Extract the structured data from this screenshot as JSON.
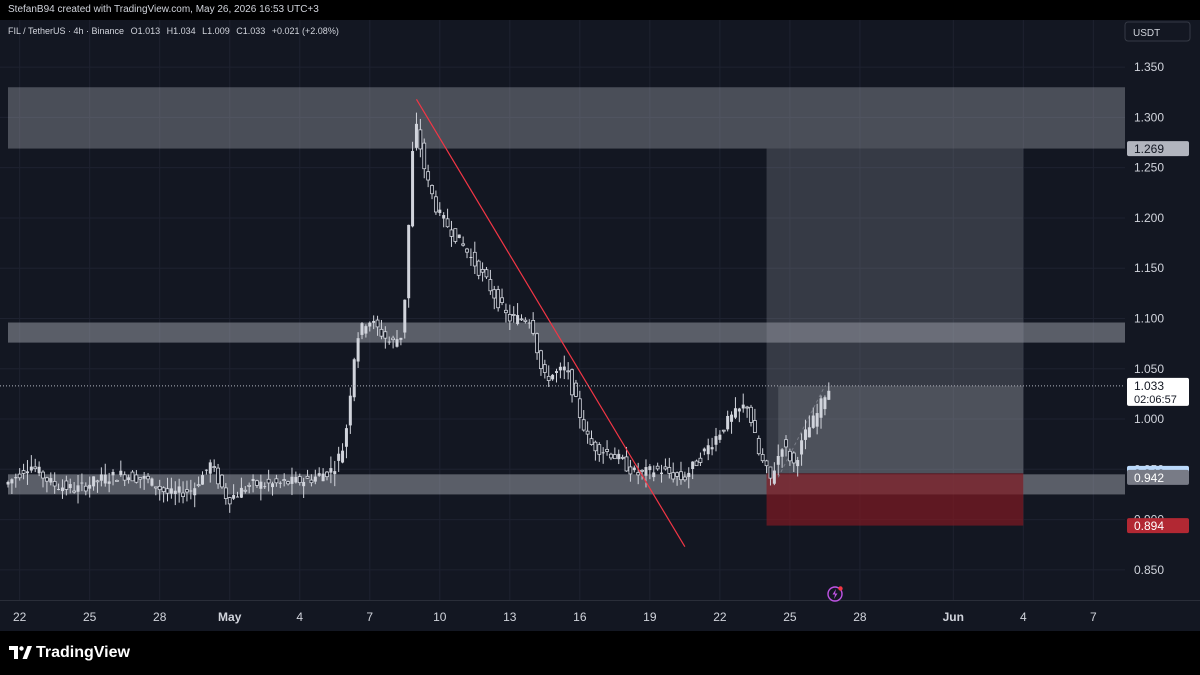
{
  "header": {
    "caption": "StefanB94 created with TradingView.com, May 26, 2026 16:53 UTC+3"
  },
  "legend": {
    "symbol": "FIL / TetherUS · 4h · Binance",
    "open": "O1.013",
    "high": "H1.034",
    "low": "L1.009",
    "close": "C1.033",
    "change": "+0.021 (+2.08%)"
  },
  "footer": {
    "brand": "TradingView"
  },
  "colors": {
    "background": "#131722",
    "grid": "#1e2230",
    "candle": "#d1d4dc",
    "trendline": "#f23645",
    "zone": "#b2b5be",
    "target_zone": "#9598a1",
    "stop_zone": "#801922",
    "stop_label": "#b22833",
    "entry_label": "#bbd9fb"
  },
  "chart_data": {
    "type": "candlestick",
    "symbol": "FIL / TetherUS",
    "interval": "4h",
    "exchange": "Binance",
    "currency": "USDT",
    "y_axis_label": "USDT",
    "ylim": [
      0.82,
      1.375
    ],
    "y_ticks": [
      0.85,
      0.9,
      0.95,
      1.0,
      1.05,
      1.1,
      1.15,
      1.2,
      1.25,
      1.3,
      1.35
    ],
    "y_tick_labels": [
      "0.850",
      "0.900",
      "0.950",
      "1.000",
      "1.050",
      "1.100",
      "1.150",
      "1.200",
      "1.250",
      "1.300",
      "1.350"
    ],
    "x_range": [
      "2026-04-21T12:00",
      "2026-06-07T12:00"
    ],
    "x_ticks": [
      {
        "date": "2026-04-22",
        "label": "22",
        "bold": false
      },
      {
        "date": "2026-04-25",
        "label": "25",
        "bold": false
      },
      {
        "date": "2026-04-28",
        "label": "28",
        "bold": false
      },
      {
        "date": "2026-05-01",
        "label": "May",
        "bold": true
      },
      {
        "date": "2026-05-04",
        "label": "4",
        "bold": false
      },
      {
        "date": "2026-05-07",
        "label": "7",
        "bold": false
      },
      {
        "date": "2026-05-10",
        "label": "10",
        "bold": false
      },
      {
        "date": "2026-05-13",
        "label": "13",
        "bold": false
      },
      {
        "date": "2026-05-16",
        "label": "16",
        "bold": false
      },
      {
        "date": "2026-05-19",
        "label": "19",
        "bold": false
      },
      {
        "date": "2026-05-22",
        "label": "22",
        "bold": false
      },
      {
        "date": "2026-05-25",
        "label": "25",
        "bold": false
      },
      {
        "date": "2026-05-28",
        "label": "28",
        "bold": false
      },
      {
        "date": "2026-06-01",
        "label": "Jun",
        "bold": true
      },
      {
        "date": "2026-06-04",
        "label": "4",
        "bold": false
      },
      {
        "date": "2026-06-07",
        "label": "7",
        "bold": false
      }
    ],
    "zones": [
      {
        "name": "resistance-zone",
        "from": 1.269,
        "to": 1.33
      },
      {
        "name": "mid-zone",
        "from": 1.076,
        "to": 1.096
      },
      {
        "name": "support-zone",
        "from": 0.925,
        "to": 0.945
      }
    ],
    "trendline": {
      "start": {
        "date": "2026-05-09T00:00",
        "price": 1.318
      },
      "end": {
        "date": "2026-05-20T12:00",
        "price": 0.873
      }
    },
    "position": {
      "type": "long",
      "entry": 0.946,
      "target": 1.269,
      "stop": 0.894,
      "start": "2026-05-24T00:00",
      "end": "2026-06-04T00:00",
      "fill_start": "2026-05-24T12:00",
      "fill_end": "2026-05-26T12:00"
    },
    "price_labels": [
      {
        "value": 1.269,
        "text": "1.269",
        "kind": "target"
      },
      {
        "value": 1.033,
        "text": "1.033",
        "kind": "current",
        "extra": "02:06:57"
      },
      {
        "value": 0.946,
        "text": "0.946",
        "kind": "entry"
      },
      {
        "value": 0.942,
        "text": "0.942",
        "kind": "zone"
      },
      {
        "value": 0.894,
        "text": "0.894",
        "kind": "stop"
      }
    ],
    "last_price": 1.033,
    "countdown": "02:06:57",
    "anchors": [
      {
        "date": "2026-04-21T12:00",
        "price": 0.935
      },
      {
        "date": "2026-04-22T12:00",
        "price": 0.955
      },
      {
        "date": "2026-04-23T12:00",
        "price": 0.935
      },
      {
        "date": "2026-04-24T12:00",
        "price": 0.93
      },
      {
        "date": "2026-04-25T12:00",
        "price": 0.94
      },
      {
        "date": "2026-04-26T12:00",
        "price": 0.945
      },
      {
        "date": "2026-04-27T12:00",
        "price": 0.94
      },
      {
        "date": "2026-04-28T12:00",
        "price": 0.925
      },
      {
        "date": "2026-04-29T12:00",
        "price": 0.93
      },
      {
        "date": "2026-04-30T06:00",
        "price": 0.955
      },
      {
        "date": "2026-05-01T00:00",
        "price": 0.92
      },
      {
        "date": "2026-05-02T00:00",
        "price": 0.935
      },
      {
        "date": "2026-05-03T00:00",
        "price": 0.935
      },
      {
        "date": "2026-05-04T12:00",
        "price": 0.94
      },
      {
        "date": "2026-05-05T12:00",
        "price": 0.95
      },
      {
        "date": "2026-05-06T00:00",
        "price": 0.975
      },
      {
        "date": "2026-05-06T12:00",
        "price": 1.08
      },
      {
        "date": "2026-05-07T00:00",
        "price": 1.1
      },
      {
        "date": "2026-05-08T00:00",
        "price": 1.075
      },
      {
        "date": "2026-05-08T12:00",
        "price": 1.085
      },
      {
        "date": "2026-05-09T00:00",
        "price": 1.3
      },
      {
        "date": "2026-05-09T12:00",
        "price": 1.24
      },
      {
        "date": "2026-05-10T00:00",
        "price": 1.205
      },
      {
        "date": "2026-05-11T00:00",
        "price": 1.175
      },
      {
        "date": "2026-05-12T00:00",
        "price": 1.14
      },
      {
        "date": "2026-05-13T00:00",
        "price": 1.1
      },
      {
        "date": "2026-05-14T00:00",
        "price": 1.1
      },
      {
        "date": "2026-05-14T12:00",
        "price": 1.04
      },
      {
        "date": "2026-05-15T12:00",
        "price": 1.05
      },
      {
        "date": "2026-05-16T00:00",
        "price": 1.01
      },
      {
        "date": "2026-05-16T12:00",
        "price": 0.975
      },
      {
        "date": "2026-05-17T12:00",
        "price": 0.965
      },
      {
        "date": "2026-05-18T12:00",
        "price": 0.945
      },
      {
        "date": "2026-05-19T12:00",
        "price": 0.95
      },
      {
        "date": "2026-05-20T12:00",
        "price": 0.94
      },
      {
        "date": "2026-05-21T12:00",
        "price": 0.97
      },
      {
        "date": "2026-05-22T12:00",
        "price": 1.0
      },
      {
        "date": "2026-05-23T06:00",
        "price": 1.015
      },
      {
        "date": "2026-05-23T18:00",
        "price": 0.965
      },
      {
        "date": "2026-05-24T06:00",
        "price": 0.94
      },
      {
        "date": "2026-05-24T18:00",
        "price": 0.975
      },
      {
        "date": "2026-05-25T06:00",
        "price": 0.955
      },
      {
        "date": "2026-05-25T18:00",
        "price": 0.985
      },
      {
        "date": "2026-05-26T06:00",
        "price": 1.005
      },
      {
        "date": "2026-05-26T16:00",
        "price": 1.03
      }
    ]
  }
}
